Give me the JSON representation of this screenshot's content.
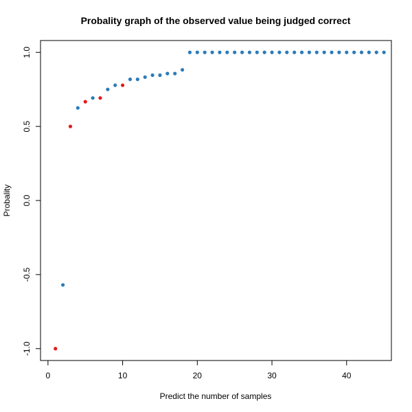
{
  "chart_data": {
    "type": "scatter",
    "title": "Probality graph of the observed value being judged correct",
    "xlabel": "Predict the number of samples",
    "ylabel": "Probality",
    "xlim": [
      -1,
      46
    ],
    "ylim": [
      -1.08,
      1.08
    ],
    "x_ticks": [
      "0",
      "10",
      "20",
      "30",
      "40"
    ],
    "x_tick_values": [
      0,
      10,
      20,
      30,
      40
    ],
    "y_ticks": [
      "-1.0",
      "-0.5",
      "0.0",
      "0.5",
      "1.0"
    ],
    "y_tick_values": [
      -1.0,
      -0.5,
      0.0,
      0.5,
      1.0
    ],
    "grid": false,
    "colors": {
      "blue": "#2b7bba",
      "red": "#e31a1c"
    },
    "points": [
      {
        "x": 1,
        "y": -1.0,
        "color": "red"
      },
      {
        "x": 2,
        "y": -0.57,
        "color": "blue"
      },
      {
        "x": 3,
        "y": 0.5,
        "color": "red"
      },
      {
        "x": 4,
        "y": 0.625,
        "color": "blue"
      },
      {
        "x": 5,
        "y": 0.667,
        "color": "red"
      },
      {
        "x": 6,
        "y": 0.692,
        "color": "blue"
      },
      {
        "x": 7,
        "y": 0.692,
        "color": "red"
      },
      {
        "x": 8,
        "y": 0.75,
        "color": "blue"
      },
      {
        "x": 9,
        "y": 0.778,
        "color": "blue"
      },
      {
        "x": 10,
        "y": 0.778,
        "color": "red"
      },
      {
        "x": 11,
        "y": 0.818,
        "color": "blue"
      },
      {
        "x": 12,
        "y": 0.818,
        "color": "blue"
      },
      {
        "x": 13,
        "y": 0.833,
        "color": "blue"
      },
      {
        "x": 14,
        "y": 0.846,
        "color": "blue"
      },
      {
        "x": 15,
        "y": 0.846,
        "color": "blue"
      },
      {
        "x": 16,
        "y": 0.857,
        "color": "blue"
      },
      {
        "x": 17,
        "y": 0.857,
        "color": "blue"
      },
      {
        "x": 18,
        "y": 0.882,
        "color": "blue"
      },
      {
        "x": 19,
        "y": 1.0,
        "color": "blue"
      },
      {
        "x": 20,
        "y": 1.0,
        "color": "blue"
      },
      {
        "x": 21,
        "y": 1.0,
        "color": "blue"
      },
      {
        "x": 22,
        "y": 1.0,
        "color": "blue"
      },
      {
        "x": 23,
        "y": 1.0,
        "color": "blue"
      },
      {
        "x": 24,
        "y": 1.0,
        "color": "blue"
      },
      {
        "x": 25,
        "y": 1.0,
        "color": "blue"
      },
      {
        "x": 26,
        "y": 1.0,
        "color": "blue"
      },
      {
        "x": 27,
        "y": 1.0,
        "color": "blue"
      },
      {
        "x": 28,
        "y": 1.0,
        "color": "blue"
      },
      {
        "x": 29,
        "y": 1.0,
        "color": "blue"
      },
      {
        "x": 30,
        "y": 1.0,
        "color": "blue"
      },
      {
        "x": 31,
        "y": 1.0,
        "color": "blue"
      },
      {
        "x": 32,
        "y": 1.0,
        "color": "blue"
      },
      {
        "x": 33,
        "y": 1.0,
        "color": "blue"
      },
      {
        "x": 34,
        "y": 1.0,
        "color": "blue"
      },
      {
        "x": 35,
        "y": 1.0,
        "color": "blue"
      },
      {
        "x": 36,
        "y": 1.0,
        "color": "blue"
      },
      {
        "x": 37,
        "y": 1.0,
        "color": "blue"
      },
      {
        "x": 38,
        "y": 1.0,
        "color": "blue"
      },
      {
        "x": 39,
        "y": 1.0,
        "color": "blue"
      },
      {
        "x": 40,
        "y": 1.0,
        "color": "blue"
      },
      {
        "x": 41,
        "y": 1.0,
        "color": "blue"
      },
      {
        "x": 42,
        "y": 1.0,
        "color": "blue"
      },
      {
        "x": 43,
        "y": 1.0,
        "color": "blue"
      },
      {
        "x": 44,
        "y": 1.0,
        "color": "blue"
      },
      {
        "x": 45,
        "y": 1.0,
        "color": "blue"
      }
    ]
  }
}
